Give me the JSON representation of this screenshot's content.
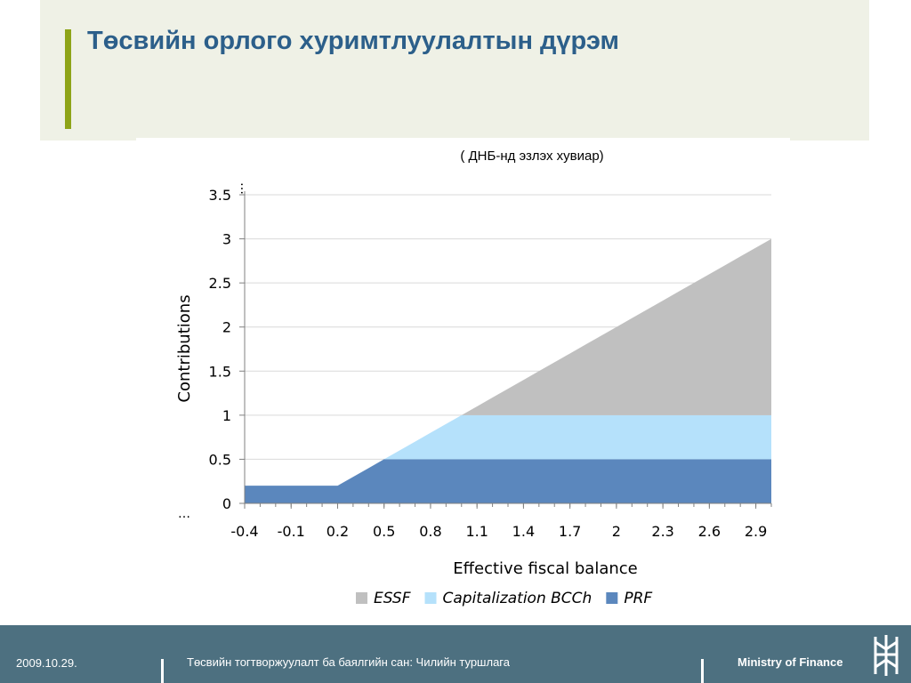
{
  "slide": {
    "title": "Төсвийн орлого хуримтлуулалтын дүрэм",
    "subtitle": "( ДНБ-нд эзлэх хувиар)"
  },
  "footer": {
    "date": "2009.10.29.",
    "caption": "Төсвийн тогтворжуулалт ба баялгийн сан: Чилийн туршлага",
    "org": "Ministry of Finance",
    "logo_icon": "ministry-logo-icon"
  },
  "chart_data": {
    "type": "area",
    "stacked": true,
    "xlabel": "Effective fiscal balance",
    "ylabel": "Contributions",
    "x": [
      -0.4,
      -0.3,
      -0.2,
      -0.1,
      0.0,
      0.1,
      0.2,
      0.3,
      0.4,
      0.5,
      0.6,
      0.7,
      0.8,
      0.9,
      1.0,
      1.1,
      1.2,
      1.3,
      1.4,
      1.5,
      1.6,
      1.7,
      1.8,
      1.9,
      2.0,
      2.1,
      2.2,
      2.3,
      2.4,
      2.5,
      2.6,
      2.7,
      2.8,
      2.9,
      3.0
    ],
    "x_tick_labels": [
      "-0.4",
      "-0.1",
      "0.2",
      "0.5",
      "0.8",
      "1.1",
      "1.4",
      "1.7",
      "2",
      "2.3",
      "2.6",
      "2.9"
    ],
    "y_ticks": [
      "0",
      "0.5",
      "1",
      "1.5",
      "2",
      "2.5",
      "3",
      "3.5"
    ],
    "ylim": [
      0,
      3.5
    ],
    "gridlines": true,
    "legend_position": "bottom",
    "series": [
      {
        "name": "PRF",
        "color": "#5b87bd",
        "values": [
          0.2,
          0.2,
          0.2,
          0.2,
          0.2,
          0.2,
          0.2,
          0.3,
          0.4,
          0.5,
          0.5,
          0.5,
          0.5,
          0.5,
          0.5,
          0.5,
          0.5,
          0.5,
          0.5,
          0.5,
          0.5,
          0.5,
          0.5,
          0.5,
          0.5,
          0.5,
          0.5,
          0.5,
          0.5,
          0.5,
          0.5,
          0.5,
          0.5,
          0.5,
          0.5
        ]
      },
      {
        "name": "Capitalization BCCh",
        "color": "#b5e1fb",
        "values": [
          0,
          0,
          0,
          0,
          0,
          0,
          0,
          0,
          0,
          0,
          0.1,
          0.2,
          0.3,
          0.4,
          0.5,
          0.5,
          0.5,
          0.5,
          0.5,
          0.5,
          0.5,
          0.5,
          0.5,
          0.5,
          0.5,
          0.5,
          0.5,
          0.5,
          0.5,
          0.5,
          0.5,
          0.5,
          0.5,
          0.5,
          0.5
        ]
      },
      {
        "name": "ESSF",
        "color": "#c0c0c0",
        "values": [
          0,
          0,
          0,
          0,
          0,
          0,
          0,
          0,
          0,
          0,
          0,
          0,
          0,
          0,
          0,
          0.1,
          0.2,
          0.3,
          0.4,
          0.5,
          0.6,
          0.7,
          0.8,
          0.9,
          1.0,
          1.1,
          1.2,
          1.3,
          1.4,
          1.5,
          1.6,
          1.7,
          1.8,
          1.9,
          2.0
        ]
      }
    ],
    "legend_order": [
      "ESSF",
      "Capitalization BCCh",
      "PRF"
    ],
    "break_marks": [
      "…",
      "…",
      "…"
    ]
  }
}
